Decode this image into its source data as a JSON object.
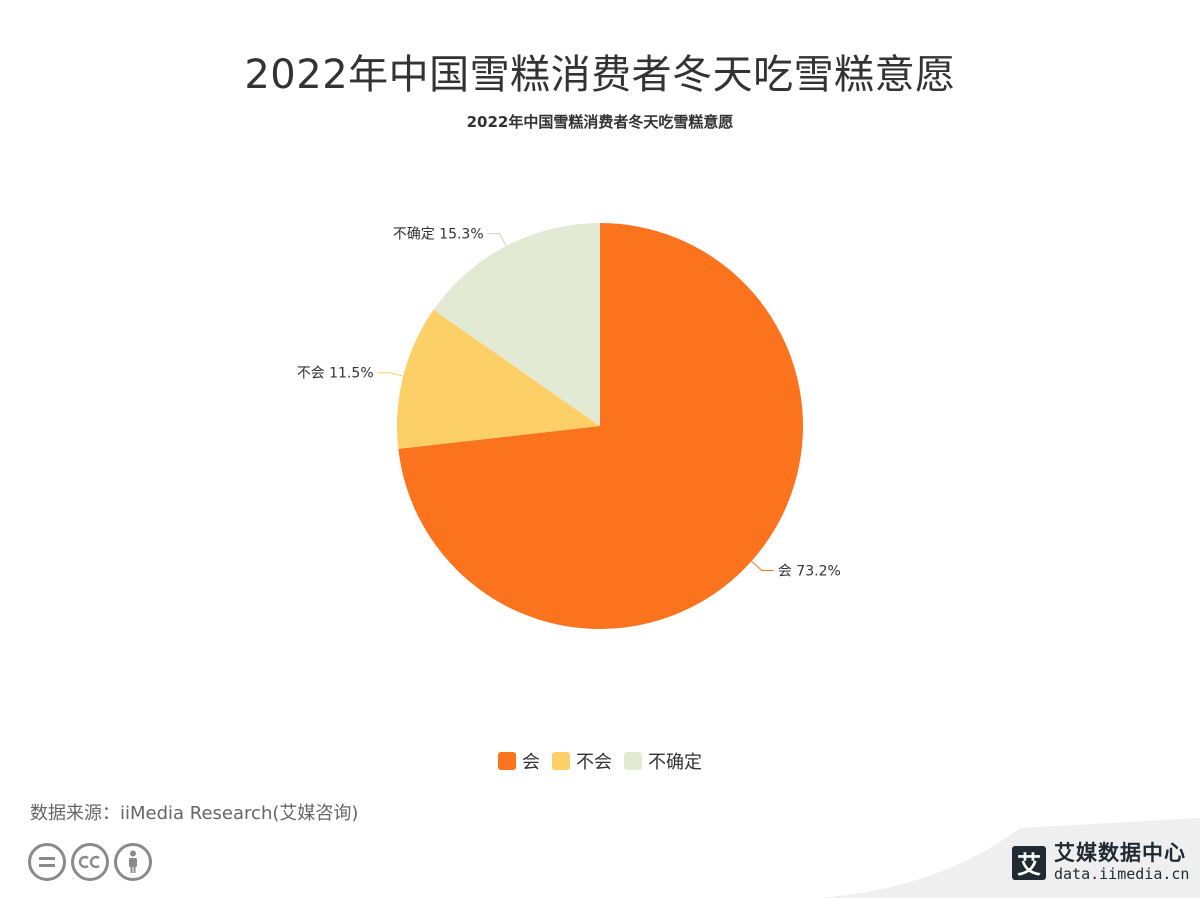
{
  "title": "2022年中国雪糕消费者冬天吃雪糕意愿",
  "chart_data": {
    "type": "pie",
    "title": "2022年中国雪糕消费者冬天吃雪糕意愿",
    "slices": [
      {
        "label": "会",
        "value": 73.2,
        "display": "会 73.2%",
        "color": "#fb731c"
      },
      {
        "label": "不会",
        "value": 11.5,
        "display": "不会 11.5%",
        "color": "#fdd067"
      },
      {
        "label": "不确定",
        "value": 15.3,
        "display": "不确定 15.3%",
        "color": "#e2ead3"
      }
    ],
    "legend_position": "bottom",
    "start_angle": "top",
    "direction": "clockwise"
  },
  "source": "数据来源：iiMedia Research(艾媒咨询)",
  "license_icons": [
    "cc-nd-icon",
    "cc-icon",
    "cc-by-icon"
  ],
  "brand": {
    "logo_char": "艾",
    "name": "艾媒数据中心",
    "url": "data.iimedia.cn"
  }
}
